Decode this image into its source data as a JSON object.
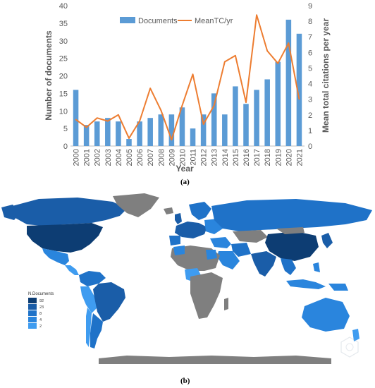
{
  "chart_data": {
    "type": "bar+line",
    "categories": [
      "2000",
      "2001",
      "2002",
      "2003",
      "2004",
      "2005",
      "2006",
      "2007",
      "2008",
      "2009",
      "2010",
      "2011",
      "2012",
      "2013",
      "2014",
      "2015",
      "2016",
      "2017",
      "2018",
      "2019",
      "2020",
      "2021"
    ],
    "series": [
      {
        "name": "Documents",
        "type": "bar",
        "axis": "left",
        "values": [
          16,
          6,
          7,
          8,
          7,
          2,
          7,
          8,
          9,
          9,
          11,
          5,
          9,
          15,
          9,
          17,
          12,
          16,
          19,
          24,
          36,
          32
        ]
      },
      {
        "name": "MeanTC/yr",
        "type": "line",
        "axis": "right",
        "values": [
          1.7,
          1.2,
          1.8,
          1.6,
          2.0,
          0.5,
          1.6,
          3.7,
          2.3,
          0.4,
          2.6,
          4.6,
          1.4,
          2.6,
          5.4,
          5.8,
          2.8,
          8.4,
          6.1,
          5.3,
          6.6,
          3.0
        ]
      }
    ],
    "xlabel": "Year",
    "ylabel": "Number of documents",
    "y2label": "Mean total citations per year",
    "ylim": [
      0,
      40
    ],
    "y2lim": [
      0,
      9
    ],
    "yticks": [
      "0",
      "5",
      "10",
      "15",
      "20",
      "25",
      "30",
      "35",
      "40"
    ],
    "y2ticks": [
      "0",
      "1",
      "2",
      "3",
      "4",
      "5",
      "6",
      "7",
      "8",
      "9"
    ],
    "legend_position": "top",
    "grid": false,
    "colors": {
      "bar": "#5b9bd5",
      "line": "#ed7d31"
    }
  },
  "labels": {
    "panel_a": "(a)",
    "panel_b": "(b)"
  },
  "map_legend": {
    "title": "N.Documents",
    "entries": [
      {
        "label": "92",
        "color": "#0d3d73"
      },
      {
        "label": "23",
        "color": "#1a5da8"
      },
      {
        "label": "8",
        "color": "#1f72c8"
      },
      {
        "label": "4",
        "color": "#2a85dd"
      },
      {
        "label": "2",
        "color": "#3f9cf0"
      }
    ],
    "no_data_color": "#7f7f7f"
  }
}
